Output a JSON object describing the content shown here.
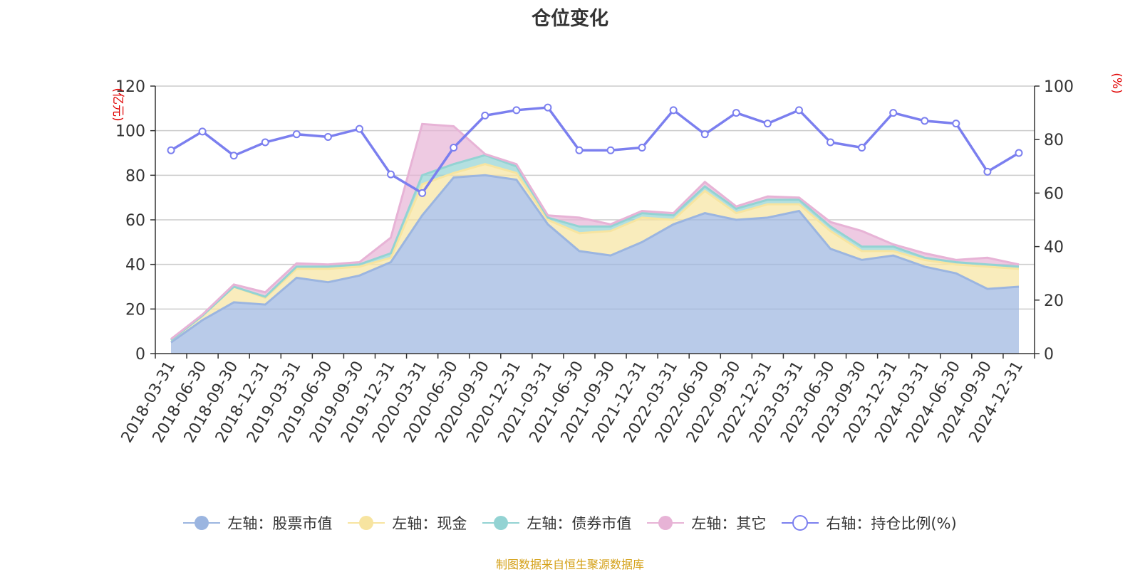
{
  "chart_data": {
    "type": "area",
    "title": "仓位变化",
    "left_axis": {
      "label": "(亿元)",
      "ylim": [
        0,
        120
      ],
      "ticks": [
        "0",
        "20",
        "40",
        "60",
        "80",
        "100",
        "120"
      ]
    },
    "right_axis": {
      "label": "(%)",
      "ylim": [
        0,
        100
      ],
      "ticks": [
        "0",
        "20",
        "40",
        "60",
        "80",
        "100"
      ]
    },
    "categories": [
      "2018-03-31",
      "2018-06-30",
      "2018-09-30",
      "2018-12-31",
      "2019-03-31",
      "2019-06-30",
      "2019-09-30",
      "2019-12-31",
      "2020-03-31",
      "2020-06-30",
      "2020-09-30",
      "2020-12-31",
      "2021-03-31",
      "2021-06-30",
      "2021-09-30",
      "2021-12-31",
      "2022-03-31",
      "2022-06-30",
      "2022-09-30",
      "2022-12-31",
      "2023-03-31",
      "2023-06-30",
      "2023-09-30",
      "2023-12-31",
      "2024-03-31",
      "2024-06-30",
      "2024-09-30",
      "2024-12-31"
    ],
    "series": [
      {
        "name": "左轴：股票市值",
        "axis": "left",
        "stack": true,
        "color": "#9bb5e0",
        "values": [
          5,
          15,
          23,
          22,
          34,
          32,
          35,
          41,
          62,
          79,
          80,
          78,
          58,
          46,
          44,
          50,
          58,
          63,
          60,
          61,
          64,
          47,
          42,
          44,
          39,
          36,
          29,
          30
        ]
      },
      {
        "name": "左轴：现金",
        "axis": "left",
        "stack": true,
        "color": "#f7e4a0",
        "values": [
          1,
          2,
          7,
          3,
          4,
          6,
          4,
          2,
          14,
          2,
          5,
          3,
          2,
          8,
          11,
          11,
          2,
          10,
          3,
          6,
          3,
          8,
          4,
          2,
          3,
          4,
          10,
          8
        ]
      },
      {
        "name": "左轴：债券市值",
        "axis": "left",
        "stack": true,
        "color": "#93d3d3",
        "values": [
          0,
          0,
          0,
          0.5,
          1,
          1,
          1,
          2,
          4,
          4,
          4,
          3,
          1,
          3,
          2,
          2,
          2,
          2,
          2,
          2,
          2,
          2,
          2,
          2,
          1,
          1,
          1,
          1
        ]
      },
      {
        "name": "左轴：其它",
        "axis": "left",
        "stack": true,
        "color": "#e7b3d6",
        "values": [
          0.5,
          0.5,
          1,
          2,
          1.5,
          1,
          1,
          7,
          23,
          17,
          0.5,
          1,
          1,
          4,
          1,
          1,
          1,
          2,
          1,
          1.5,
          1,
          2,
          7,
          1,
          2,
          1,
          3,
          1
        ]
      },
      {
        "name": "右轴：持仓比例(%)",
        "axis": "right",
        "type": "line",
        "color": "#7b7fef",
        "values": [
          76,
          83,
          74,
          79,
          82,
          81,
          84,
          67,
          60,
          77,
          89,
          91,
          92,
          76,
          76,
          77,
          91,
          82,
          90,
          86,
          91,
          79,
          77,
          90,
          87,
          86,
          68,
          75
        ]
      }
    ]
  },
  "source_note": "制图数据来自恒生聚源数据库"
}
